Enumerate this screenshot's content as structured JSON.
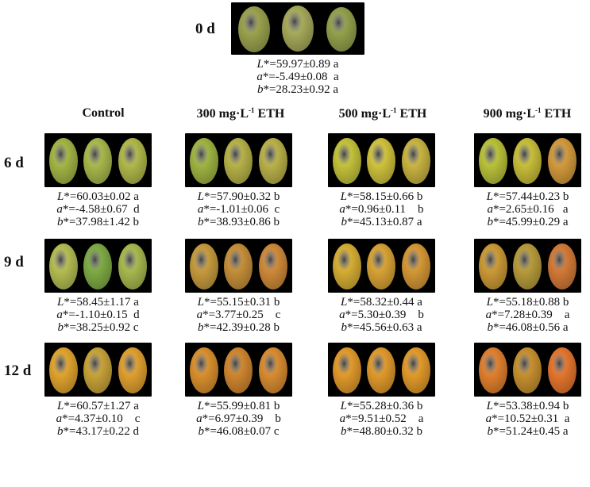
{
  "initial": {
    "label": "0 d",
    "L": "L*=59.97±0.89 a",
    "a": "a*=-5.49±0.08  a",
    "b": "b*=28.23±0.92 a",
    "colors": [
      "#9aa24e",
      "#a6aa5a",
      "#93a14c"
    ]
  },
  "columns": [
    {
      "label": "Control",
      "unit": ""
    },
    {
      "label": "300 mg·L",
      "sup": "-1",
      "suffix": " ETH"
    },
    {
      "label": "500 mg·L",
      "sup": "-1",
      "suffix": " ETH"
    },
    {
      "label": "900 mg·L",
      "sup": "-1",
      "suffix": " ETH"
    }
  ],
  "rows": [
    {
      "label": "6 d",
      "cells": [
        {
          "L": "L*=60.03±0.02 a",
          "a": "a*=-4.58±0.67  d",
          "b": "b*=37.98±1.42 b",
          "colors": [
            "#a3b545",
            "#a9b84c",
            "#b0b84a"
          ]
        },
        {
          "L": "L*=57.90±0.32 b",
          "a": "a*=-1.01±0.06  c",
          "b": "b*=38.93±0.86 b",
          "colors": [
            "#9fb443",
            "#b6b248",
            "#b9b14a"
          ]
        },
        {
          "L": "L*=58.15±0.66 b",
          "a": "a*=0.96±0.11    b",
          "b": "b*=45.13±0.87 a",
          "colors": [
            "#c4c23a",
            "#cfc23d",
            "#c9b442"
          ]
        },
        {
          "L": "L*=57.44±0.23 b",
          "a": "a*=2.65±0.16   a",
          "b": "b*=45.99±0.29 a",
          "colors": [
            "#b9c13a",
            "#c8be3a",
            "#d39a3c"
          ]
        }
      ]
    },
    {
      "label": "9 d",
      "cells": [
        {
          "L": "L*=58.45±1.17 a",
          "a": "a*=-1.10±0.15  d",
          "b": "b*=38.25±0.92 c",
          "colors": [
            "#b4bd52",
            "#7fab45",
            "#a7b94e"
          ]
        },
        {
          "L": "L*=55.15±0.31 b",
          "a": "a*=3.77±0.25    c",
          "b": "b*=42.39±0.28 b",
          "colors": [
            "#c69b3e",
            "#c68f3a",
            "#cf8a39"
          ]
        },
        {
          "L": "L*=58.32±0.44 a",
          "a": "a*=5.30±0.39    b",
          "b": "b*=45.56±0.63 a",
          "colors": [
            "#d6ae34",
            "#d8a335",
            "#d59836"
          ]
        },
        {
          "L": "L*=55.18±0.88 b",
          "a": "a*=7.28±0.39    a",
          "b": "b*=46.08±0.56 a",
          "colors": [
            "#cc9a36",
            "#b79b3c",
            "#d37a37"
          ]
        }
      ]
    },
    {
      "label": "12 d",
      "cells": [
        {
          "L": "L*=60.57±1.27 a",
          "a": "a*=4.37±0.10    c",
          "b": "b*=43.17±0.22 d",
          "colors": [
            "#e0a42e",
            "#c8a339",
            "#e0a030"
          ]
        },
        {
          "L": "L*=55.99±0.81 b",
          "a": "a*=6.97±0.39    b",
          "b": "b*=46.08±0.07 c",
          "colors": [
            "#d9902e",
            "#d0862f",
            "#d98c31"
          ]
        },
        {
          "L": "L*=55.28±0.36 b",
          "a": "a*=9.51±0.52    a",
          "b": "b*=48.80±0.32 b",
          "colors": [
            "#e29a2b",
            "#e09a2c",
            "#e29a2b"
          ]
        },
        {
          "L": "L*=53.38±0.94 b",
          "a": "a*=10.52±0.31  a",
          "b": "b*=51.24±0.45 a",
          "colors": [
            "#e0802e",
            "#c7902f",
            "#e4762e"
          ]
        }
      ]
    }
  ]
}
